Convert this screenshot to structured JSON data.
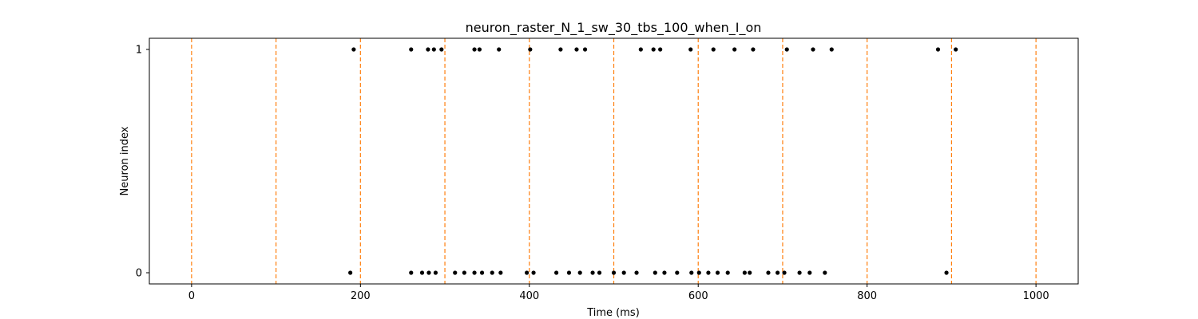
{
  "chart_data": {
    "type": "scatter",
    "title": "neuron_raster_N_1_sw_30_tbs_100_when_I_on",
    "xlabel": "Time (ms)",
    "ylabel": "Neuron index",
    "xlim": [
      -50,
      1050
    ],
    "ylim": [
      -0.05,
      1.05
    ],
    "xticks": [
      0,
      200,
      400,
      600,
      800,
      1000
    ],
    "yticks": [
      0,
      1
    ],
    "grid": false,
    "marker_color": "#000000",
    "vline_color": "#ff7f0e",
    "vlines": [
      0,
      100,
      200,
      300,
      400,
      500,
      600,
      700,
      800,
      900,
      1000
    ],
    "series": [
      {
        "neuron": 0,
        "x": [
          188,
          260,
          273,
          281,
          289,
          312,
          323,
          335,
          344,
          356,
          366,
          397,
          405,
          432,
          447,
          460,
          475,
          483,
          500,
          512,
          527,
          549,
          560,
          575,
          592,
          601,
          612,
          623,
          635,
          655,
          661,
          683,
          694,
          702,
          720,
          732,
          750,
          894
        ]
      },
      {
        "neuron": 1,
        "x": [
          192,
          260,
          280,
          287,
          296,
          335,
          341,
          364,
          401,
          437,
          456,
          466,
          532,
          547,
          555,
          591,
          618,
          643,
          665,
          705,
          736,
          758,
          884,
          905
        ]
      }
    ]
  }
}
